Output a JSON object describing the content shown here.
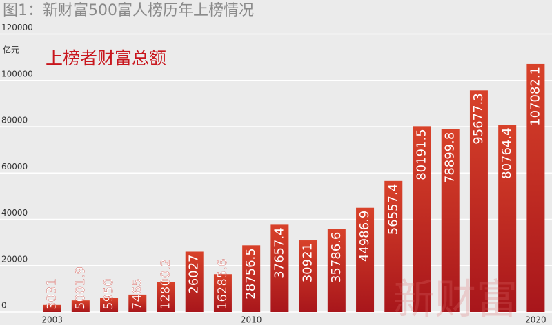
{
  "chart_data": {
    "type": "bar",
    "title": "图1：新财富500富人榜历年上榜情况",
    "y_unit": "亿元",
    "series_label": "上榜者财富总额",
    "watermark": "新财富",
    "categories": [
      "2003",
      null,
      null,
      null,
      null,
      null,
      null,
      "2010",
      null,
      null,
      null,
      null,
      null,
      null,
      null,
      null,
      null,
      "2020"
    ],
    "values": [
      3031,
      5001.9,
      5950,
      7465,
      12800.2,
      26027,
      16285.6,
      28756.5,
      37657.4,
      30921,
      35786.6,
      44986.9,
      56557.4,
      80191.5,
      78899.8,
      95677.3,
      80764.4,
      107082.1
    ],
    "color": "#d8422a",
    "ylim": [
      0,
      120000
    ],
    "yticks": [
      0,
      20000,
      40000,
      60000,
      80000,
      100000,
      120000
    ],
    "grid": true
  }
}
